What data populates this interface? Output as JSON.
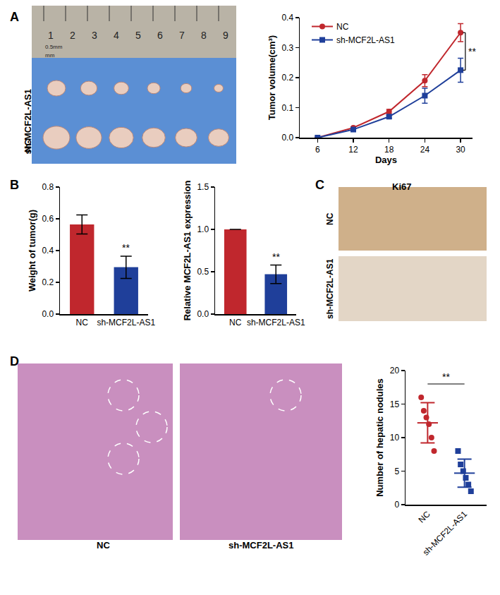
{
  "figure": {
    "panel_letters": [
      "A",
      "B",
      "C",
      "D"
    ],
    "tumor_photo": {
      "row_labels": [
        "sh-MCF2L-AS1",
        "NC"
      ],
      "ruler_labels": [
        "1",
        "2",
        "3",
        "4",
        "5",
        "6",
        "7",
        "8",
        "9"
      ],
      "ruler_unit": "mm",
      "ruler_note": "0.5mm",
      "tumor_counts": [
        6,
        6
      ]
    },
    "ki67": {
      "title": "Ki67",
      "row_labels": [
        "NC",
        "sh-MCF2L-AS1"
      ]
    },
    "histology": {
      "labels": [
        "NC",
        "sh-MCF2L-AS1"
      ],
      "circled_nodules": [
        3,
        1
      ]
    }
  },
  "chart_data": [
    {
      "type": "line",
      "x": [
        6,
        12,
        18,
        24,
        30
      ],
      "x_label": "Days",
      "y_label": "Tumor volume(cm³)",
      "xlim": [
        3,
        32
      ],
      "xticks": [
        6,
        12,
        18,
        24,
        30
      ],
      "ylim": [
        0,
        0.4
      ],
      "yticks": [
        {
          "value": 0,
          "label": "0.0"
        },
        0.1,
        0.2,
        0.3,
        0.4
      ],
      "legend": "upper left",
      "significance": "**",
      "series": [
        {
          "name": "NC",
          "color": "#c0272d",
          "marker": "circle",
          "values": [
            0,
            0.033,
            0.087,
            0.19,
            0.35
          ],
          "errors": [
            0,
            0.003,
            0.007,
            0.02,
            0.03
          ]
        },
        {
          "name": "sh-MCF2L-AS1",
          "color": "#1f3f9a",
          "marker": "square",
          "values": [
            0,
            0.027,
            0.07,
            0.14,
            0.225
          ],
          "errors": [
            0,
            0.003,
            0.005,
            0.025,
            0.04
          ]
        }
      ]
    },
    {
      "type": "bar",
      "categories": [
        "NC",
        "sh-MCF2L-AS1"
      ],
      "values": [
        0.565,
        0.295
      ],
      "errors": [
        0.06,
        0.07
      ],
      "colors": [
        "#c0272d",
        "#1f3f9a"
      ],
      "y_label": "Weight of tumor(g)",
      "ylim": [
        0,
        0.8
      ],
      "yticks": [
        {
          "value": 0,
          "label": "0.0"
        },
        0.2,
        0.4,
        0.6,
        0.8
      ],
      "significance": "**"
    },
    {
      "type": "bar",
      "categories": [
        "NC",
        "sh-MCF2L-AS1"
      ],
      "values": [
        1.0,
        0.47
      ],
      "errors": [
        0,
        0.11
      ],
      "colors": [
        "#c0272d",
        "#1f3f9a"
      ],
      "y_label": "Relative MCF2L-AS1 expression",
      "ylim": [
        0,
        1.5
      ],
      "yticks": [
        {
          "value": 0,
          "label": "0.0"
        },
        0.5,
        {
          "value": 1,
          "label": "1.0"
        },
        1.5
      ],
      "significance": "**"
    },
    {
      "type": "scatter",
      "categories": [
        "NC",
        "sh-MCF2L-AS1"
      ],
      "values": [
        [
          16,
          14,
          13,
          12,
          10,
          8
        ],
        [
          8,
          6,
          5,
          4,
          3,
          2
        ]
      ],
      "mean": [
        12.2,
        4.7
      ],
      "sd": [
        3.0,
        2.1
      ],
      "colors": [
        "#c0272d",
        "#1f3f9a"
      ],
      "markers": [
        "circle",
        "square"
      ],
      "y_label": "Number of hepatic nodules",
      "ylim": [
        0,
        20
      ],
      "yticks": [
        0,
        5,
        10,
        15,
        20
      ],
      "significance": "**"
    }
  ]
}
